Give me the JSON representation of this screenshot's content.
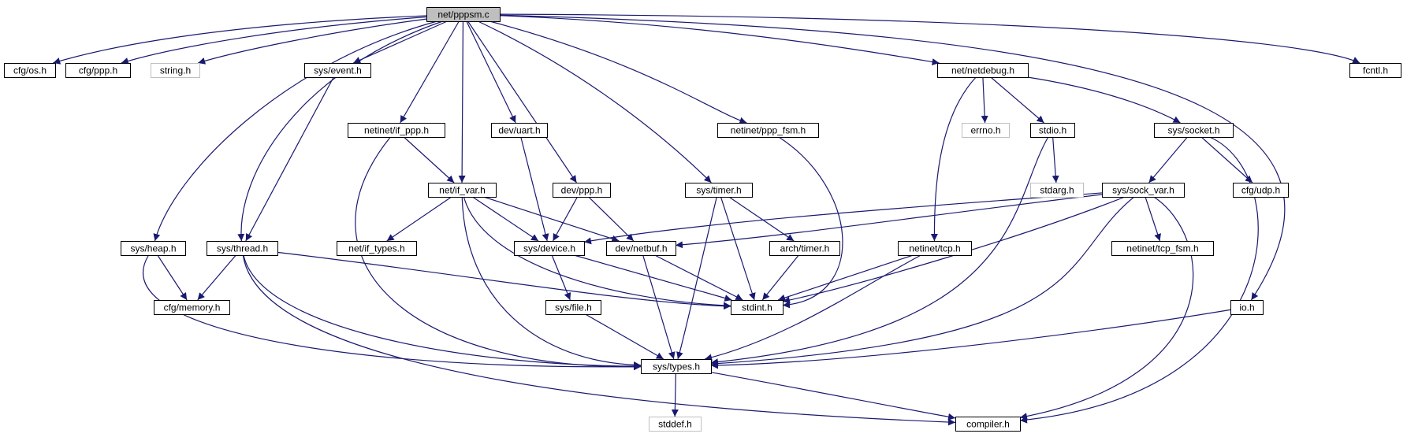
{
  "diagram": {
    "colors": {
      "edge": "#191970",
      "node_border": "#000000",
      "missing_border": "#bfbfbf",
      "root_fill": "#bfbfbf",
      "node_fill": "#ffffff"
    },
    "nodes": [
      {
        "id": "net_pppsm_c",
        "label": "net/pppsm.c",
        "kind": "root"
      },
      {
        "id": "cfg_os_h",
        "label": "cfg/os.h",
        "kind": "normal"
      },
      {
        "id": "cfg_ppp_h",
        "label": "cfg/ppp.h",
        "kind": "normal"
      },
      {
        "id": "string_h",
        "label": "string.h",
        "kind": "missing"
      },
      {
        "id": "sys_event_h",
        "label": "sys/event.h",
        "kind": "normal"
      },
      {
        "id": "net_netdebug_h",
        "label": "net/netdebug.h",
        "kind": "normal"
      },
      {
        "id": "fcntl_h",
        "label": "fcntl.h",
        "kind": "normal"
      },
      {
        "id": "netinet_if_ppp_h",
        "label": "netinet/if_ppp.h",
        "kind": "normal"
      },
      {
        "id": "dev_uart_h",
        "label": "dev/uart.h",
        "kind": "normal"
      },
      {
        "id": "netinet_ppp_fsm_h",
        "label": "netinet/ppp_fsm.h",
        "kind": "normal"
      },
      {
        "id": "errno_h",
        "label": "errno.h",
        "kind": "missing"
      },
      {
        "id": "stdio_h",
        "label": "stdio.h",
        "kind": "normal"
      },
      {
        "id": "sys_socket_h",
        "label": "sys/socket.h",
        "kind": "normal"
      },
      {
        "id": "net_if_var_h",
        "label": "net/if_var.h",
        "kind": "normal"
      },
      {
        "id": "dev_ppp_h",
        "label": "dev/ppp.h",
        "kind": "normal"
      },
      {
        "id": "sys_timer_h",
        "label": "sys/timer.h",
        "kind": "normal"
      },
      {
        "id": "stdarg_h",
        "label": "stdarg.h",
        "kind": "missing"
      },
      {
        "id": "sys_sock_var_h",
        "label": "sys/sock_var.h",
        "kind": "normal"
      },
      {
        "id": "cfg_udp_h",
        "label": "cfg/udp.h",
        "kind": "normal"
      },
      {
        "id": "sys_heap_h",
        "label": "sys/heap.h",
        "kind": "normal"
      },
      {
        "id": "sys_thread_h",
        "label": "sys/thread.h",
        "kind": "normal"
      },
      {
        "id": "net_if_types_h",
        "label": "net/if_types.h",
        "kind": "normal"
      },
      {
        "id": "sys_device_h",
        "label": "sys/device.h",
        "kind": "normal"
      },
      {
        "id": "dev_netbuf_h",
        "label": "dev/netbuf.h",
        "kind": "normal"
      },
      {
        "id": "arch_timer_h",
        "label": "arch/timer.h",
        "kind": "normal"
      },
      {
        "id": "netinet_tcp_h",
        "label": "netinet/tcp.h",
        "kind": "normal"
      },
      {
        "id": "netinet_tcp_fsm_h",
        "label": "netinet/tcp_fsm.h",
        "kind": "normal"
      },
      {
        "id": "cfg_memory_h",
        "label": "cfg/memory.h",
        "kind": "normal"
      },
      {
        "id": "stdint_h",
        "label": "stdint.h",
        "kind": "normal"
      },
      {
        "id": "sys_file_h",
        "label": "sys/file.h",
        "kind": "normal"
      },
      {
        "id": "io_h",
        "label": "io.h",
        "kind": "normal"
      },
      {
        "id": "sys_types_h",
        "label": "sys/types.h",
        "kind": "normal"
      },
      {
        "id": "stddef_h",
        "label": "stddef.h",
        "kind": "missing"
      },
      {
        "id": "compiler_h",
        "label": "compiler.h",
        "kind": "normal"
      }
    ],
    "edges": [
      {
        "from": "net_pppsm_c",
        "to": "cfg_os_h"
      },
      {
        "from": "net_pppsm_c",
        "to": "cfg_ppp_h"
      },
      {
        "from": "net_pppsm_c",
        "to": "string_h"
      },
      {
        "from": "net_pppsm_c",
        "to": "sys_event_h"
      },
      {
        "from": "net_pppsm_c",
        "to": "net_netdebug_h"
      },
      {
        "from": "net_pppsm_c",
        "to": "fcntl_h"
      },
      {
        "from": "net_pppsm_c",
        "to": "netinet_if_ppp_h"
      },
      {
        "from": "net_pppsm_c",
        "to": "dev_uart_h"
      },
      {
        "from": "net_pppsm_c",
        "to": "netinet_ppp_fsm_h"
      },
      {
        "from": "net_pppsm_c",
        "to": "net_if_var_h"
      },
      {
        "from": "net_pppsm_c",
        "to": "dev_ppp_h"
      },
      {
        "from": "net_pppsm_c",
        "to": "sys_timer_h"
      },
      {
        "from": "net_pppsm_c",
        "to": "sys_heap_h"
      },
      {
        "from": "net_pppsm_c",
        "to": "sys_thread_h"
      },
      {
        "from": "net_pppsm_c",
        "to": "io_h"
      },
      {
        "from": "sys_event_h",
        "to": "sys_thread_h"
      },
      {
        "from": "netinet_if_ppp_h",
        "to": "net_if_var_h"
      },
      {
        "from": "netinet_if_ppp_h",
        "to": "sys_types_h"
      },
      {
        "from": "dev_uart_h",
        "to": "sys_device_h"
      },
      {
        "from": "netinet_ppp_fsm_h",
        "to": "stdint_h"
      },
      {
        "from": "net_netdebug_h",
        "to": "errno_h"
      },
      {
        "from": "net_netdebug_h",
        "to": "stdio_h"
      },
      {
        "from": "net_netdebug_h",
        "to": "sys_socket_h"
      },
      {
        "from": "net_netdebug_h",
        "to": "netinet_tcp_h"
      },
      {
        "from": "stdio_h",
        "to": "stdarg_h"
      },
      {
        "from": "stdio_h",
        "to": "sys_types_h"
      },
      {
        "from": "sys_socket_h",
        "to": "sys_sock_var_h"
      },
      {
        "from": "sys_socket_h",
        "to": "cfg_udp_h"
      },
      {
        "from": "sys_socket_h",
        "to": "compiler_h"
      },
      {
        "from": "net_if_var_h",
        "to": "net_if_types_h"
      },
      {
        "from": "net_if_var_h",
        "to": "sys_device_h"
      },
      {
        "from": "net_if_var_h",
        "to": "dev_netbuf_h"
      },
      {
        "from": "net_if_var_h",
        "to": "stdint_h"
      },
      {
        "from": "net_if_var_h",
        "to": "sys_types_h"
      },
      {
        "from": "dev_ppp_h",
        "to": "sys_device_h"
      },
      {
        "from": "dev_ppp_h",
        "to": "dev_netbuf_h"
      },
      {
        "from": "sys_timer_h",
        "to": "arch_timer_h"
      },
      {
        "from": "sys_timer_h",
        "to": "stdint_h"
      },
      {
        "from": "sys_timer_h",
        "to": "sys_types_h"
      },
      {
        "from": "sys_sock_var_h",
        "to": "sys_device_h"
      },
      {
        "from": "sys_sock_var_h",
        "to": "dev_netbuf_h"
      },
      {
        "from": "sys_sock_var_h",
        "to": "netinet_tcp_fsm_h"
      },
      {
        "from": "sys_sock_var_h",
        "to": "stdint_h"
      },
      {
        "from": "sys_sock_var_h",
        "to": "sys_types_h"
      },
      {
        "from": "sys_sock_var_h",
        "to": "compiler_h"
      },
      {
        "from": "sys_heap_h",
        "to": "cfg_memory_h"
      },
      {
        "from": "sys_heap_h",
        "to": "sys_types_h"
      },
      {
        "from": "sys_thread_h",
        "to": "cfg_memory_h"
      },
      {
        "from": "sys_thread_h",
        "to": "stdint_h"
      },
      {
        "from": "sys_thread_h",
        "to": "sys_types_h"
      },
      {
        "from": "sys_thread_h",
        "to": "compiler_h"
      },
      {
        "from": "sys_device_h",
        "to": "sys_file_h"
      },
      {
        "from": "sys_device_h",
        "to": "stdint_h"
      },
      {
        "from": "dev_netbuf_h",
        "to": "stdint_h"
      },
      {
        "from": "dev_netbuf_h",
        "to": "sys_types_h"
      },
      {
        "from": "arch_timer_h",
        "to": "stdint_h"
      },
      {
        "from": "netinet_tcp_h",
        "to": "stdint_h"
      },
      {
        "from": "netinet_tcp_h",
        "to": "sys_types_h"
      },
      {
        "from": "sys_file_h",
        "to": "sys_types_h"
      },
      {
        "from": "io_h",
        "to": "sys_types_h"
      },
      {
        "from": "sys_types_h",
        "to": "stddef_h"
      },
      {
        "from": "sys_types_h",
        "to": "compiler_h"
      }
    ]
  }
}
